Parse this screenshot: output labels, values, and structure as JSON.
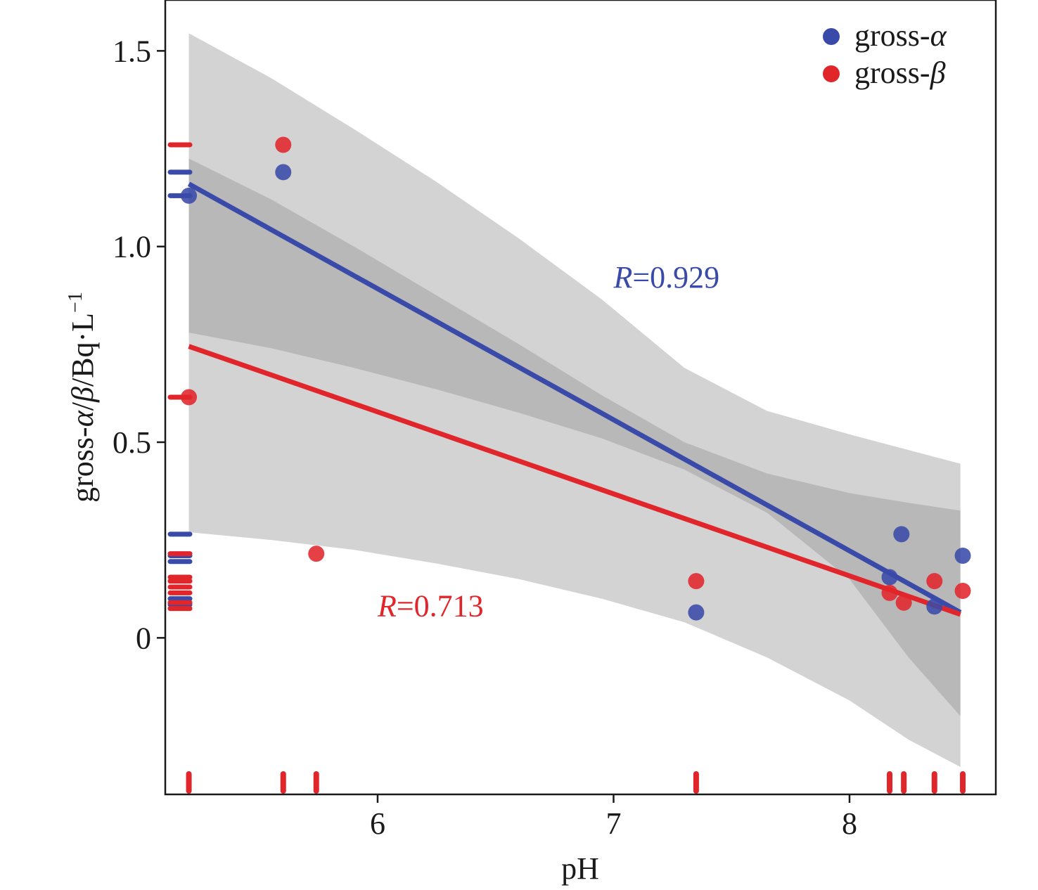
{
  "chart_data": {
    "type": "scatter",
    "xlabel": "pH",
    "ylabel_parts": [
      "gross-",
      "α",
      "/",
      "β",
      "/Bq·L",
      "−1"
    ],
    "xlim": [
      5.1,
      8.62
    ],
    "ylim": [
      -0.4,
      1.63
    ],
    "x_ticks": [
      6,
      7,
      8
    ],
    "x_tick_labels": [
      "6",
      "7",
      "8"
    ],
    "y_ticks": [
      0,
      0.5,
      1.0,
      1.5
    ],
    "y_tick_labels": [
      "0",
      "0.5",
      "1.0",
      "1.5"
    ],
    "grid": false,
    "legend_position": "top-right",
    "series": [
      {
        "name_prefix": "gross-",
        "name_symbol": "α",
        "color": "#3a4aa8",
        "x": [
          5.2,
          5.6,
          7.35,
          8.17,
          8.22,
          8.36,
          8.48
        ],
        "y": [
          1.13,
          1.19,
          0.065,
          0.155,
          0.265,
          0.08,
          0.21
        ],
        "r_label": "R=0.929",
        "r_label_position": [
          7.0,
          0.895
        ],
        "fit_line": {
          "x": [
            5.2,
            8.47
          ],
          "y": [
            1.16,
            0.065
          ]
        },
        "ci_band": {
          "x": [
            5.2,
            5.55,
            5.9,
            6.25,
            6.6,
            6.95,
            7.3,
            7.65,
            8.0,
            8.25,
            8.47
          ],
          "lower": [
            0.78,
            0.74,
            0.69,
            0.635,
            0.575,
            0.51,
            0.43,
            0.32,
            0.15,
            -0.05,
            -0.2
          ],
          "upper": [
            1.545,
            1.43,
            1.3,
            1.165,
            1.02,
            0.865,
            0.69,
            0.58,
            0.52,
            0.48,
            0.445
          ]
        }
      },
      {
        "name_prefix": "gross-",
        "name_symbol": "β",
        "color": "#e0262b",
        "x": [
          5.2,
          5.6,
          5.74,
          7.35,
          8.17,
          8.23,
          8.36,
          8.48
        ],
        "y": [
          0.615,
          1.26,
          0.215,
          0.145,
          0.115,
          0.09,
          0.145,
          0.12
        ],
        "r_label": "R=0.713",
        "r_label_position": [
          6.0,
          0.055
        ],
        "fit_line": {
          "x": [
            5.2,
            8.47
          ],
          "y": [
            0.745,
            0.06
          ]
        },
        "ci_band": {
          "x": [
            5.2,
            5.55,
            5.9,
            6.25,
            6.6,
            6.95,
            7.3,
            7.65,
            8.0,
            8.25,
            8.47
          ],
          "lower": [
            0.27,
            0.25,
            0.225,
            0.19,
            0.15,
            0.1,
            0.04,
            -0.05,
            -0.16,
            -0.26,
            -0.33
          ],
          "upper": [
            1.225,
            1.12,
            1.0,
            0.875,
            0.75,
            0.62,
            0.5,
            0.42,
            0.37,
            0.345,
            0.325
          ]
        }
      }
    ],
    "rug": {
      "y_rug": [
        {
          "color": "#3a4aa8",
          "values": [
            1.19,
            1.13,
            0.265,
            0.21,
            0.195,
            0.1,
            0.085
          ]
        },
        {
          "color": "#e0262b",
          "values": [
            1.26,
            0.615,
            0.215,
            0.155,
            0.145,
            0.13,
            0.115,
            0.09,
            0.075
          ]
        }
      ],
      "x_rug": {
        "color": "#e0262b",
        "values": [
          5.2,
          5.6,
          5.74,
          7.35,
          8.17,
          8.23,
          8.36,
          8.48
        ]
      }
    }
  }
}
